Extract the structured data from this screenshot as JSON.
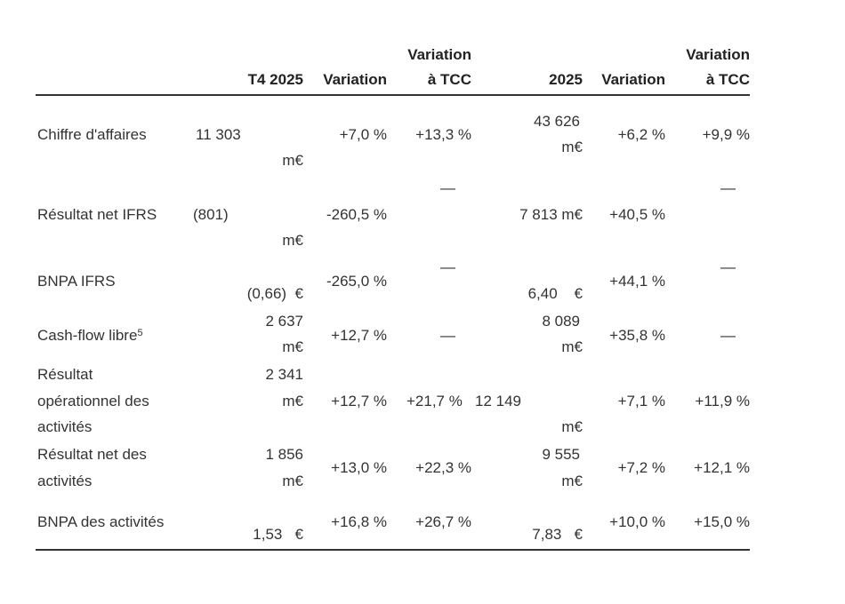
{
  "header": {
    "q4": "T4 2025",
    "var1": "Variation",
    "tcc1_top": "Variation",
    "tcc1_bottom": "à TCC",
    "fy": "2025",
    "var2": "Variation",
    "tcc2_top": "Variation",
    "tcc2_bottom": "à TCC"
  },
  "rows": [
    {
      "label": "Chiffre d'affaires",
      "q4_value": "11 303",
      "q4_unit": "m€",
      "q4_var": "+7,0 %",
      "q4_tcc": "+13,3 %",
      "fy_value": "43 626",
      "fy_unit": "m€",
      "fy_var": "+6,2 %",
      "fy_tcc": "+9,9 %"
    },
    {
      "label": "Résultat net IFRS",
      "q4_value": "(801)",
      "q4_unit": "m€",
      "q4_var": "-260,5 %",
      "q4_tcc": "—",
      "fy_value": "7 813 m€",
      "fy_var": "+40,5 %",
      "fy_tcc": "—"
    },
    {
      "label": "BNPA IFRS",
      "q4_value": "(0,66)  €",
      "q4_var": "-265,0 %",
      "q4_tcc": "—",
      "fy_value": "6,40    €",
      "fy_var": "+44,1 %",
      "fy_tcc": "—"
    },
    {
      "label": "Cash-flow libre",
      "footnote": "5",
      "q4_value": "2 637",
      "q4_unit": "m€",
      "q4_var": "+12,7 %",
      "q4_tcc": "—",
      "fy_value": "8 089",
      "fy_unit": "m€",
      "fy_var": "+35,8 %",
      "fy_tcc": "—"
    },
    {
      "label_lines": [
        "Résultat",
        "opérationnel des",
        "activités"
      ],
      "q4_value": "2 341",
      "q4_unit": "m€",
      "q4_var": "+12,7 %",
      "q4_tcc": "+21,7 %",
      "fy_value": "12 149",
      "fy_unit": "m€",
      "fy_var": "+7,1 %",
      "fy_tcc": "+11,9 %"
    },
    {
      "label_lines": [
        "Résultat net des",
        "activités"
      ],
      "q4_value": "1 856",
      "q4_unit": "m€",
      "q4_var": "+13,0 %",
      "q4_tcc": "+22,3 %",
      "fy_value": "9 555",
      "fy_unit": "m€",
      "fy_var": "+7,2 %",
      "fy_tcc": "+12,1 %"
    },
    {
      "label": "BNPA des activités",
      "q4_value": "1,53   €",
      "q4_var": "+16,8 %",
      "q4_tcc": "+26,7 %",
      "fy_value": "7,83   €",
      "fy_var": "+10,0 %",
      "fy_tcc": "+15,0 %"
    }
  ]
}
